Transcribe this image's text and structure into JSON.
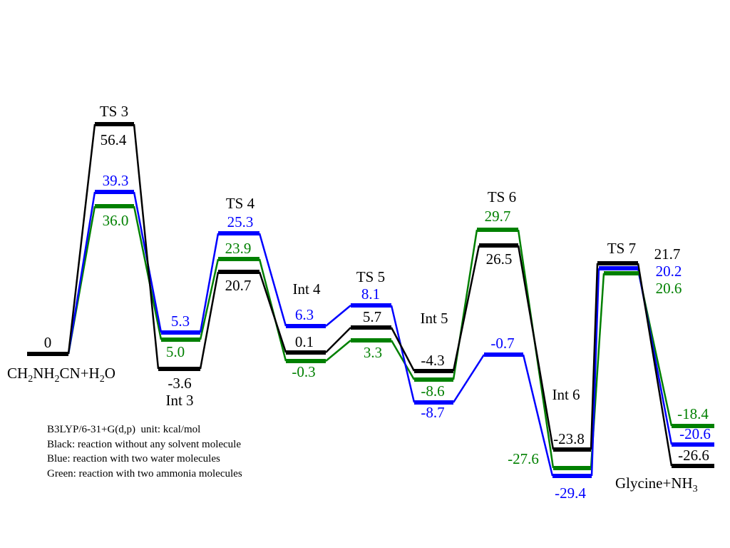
{
  "colors": {
    "black": "#000000",
    "blue": "#0000ff",
    "green": "#008000"
  },
  "levels": [
    {
      "id": "reactant",
      "series": "black",
      "value": "0"
    },
    {
      "id": "ts3",
      "series": "black",
      "value": "56.4"
    },
    {
      "id": "ts3",
      "series": "blue",
      "value": "39.3"
    },
    {
      "id": "ts3",
      "series": "green",
      "value": "36.0"
    },
    {
      "id": "int3",
      "series": "blue",
      "value": "5.3"
    },
    {
      "id": "int3",
      "series": "green",
      "value": "5.0"
    },
    {
      "id": "int3",
      "series": "black",
      "value": "-3.6"
    },
    {
      "id": "ts4",
      "series": "blue",
      "value": "25.3"
    },
    {
      "id": "ts4",
      "series": "green",
      "value": "23.9"
    },
    {
      "id": "ts4",
      "series": "black",
      "value": "20.7"
    },
    {
      "id": "int4",
      "series": "blue",
      "value": "6.3"
    },
    {
      "id": "int4",
      "series": "black",
      "value": "0.1"
    },
    {
      "id": "int4",
      "series": "green",
      "value": "-0.3"
    },
    {
      "id": "ts5",
      "series": "blue",
      "value": "8.1"
    },
    {
      "id": "ts5",
      "series": "black",
      "value": "5.7"
    },
    {
      "id": "ts5",
      "series": "green",
      "value": "3.3"
    },
    {
      "id": "int5",
      "series": "black",
      "value": "-4.3"
    },
    {
      "id": "int5",
      "series": "green",
      "value": "-8.6"
    },
    {
      "id": "int5",
      "series": "blue",
      "value": "-8.7"
    },
    {
      "id": "int5b",
      "series": "blue",
      "value": "-0.7"
    },
    {
      "id": "ts6",
      "series": "green",
      "value": "29.7"
    },
    {
      "id": "ts6",
      "series": "black",
      "value": "26.5"
    },
    {
      "id": "int6",
      "series": "black",
      "value": "-23.8"
    },
    {
      "id": "int6",
      "series": "green",
      "value": "-27.6"
    },
    {
      "id": "int6",
      "series": "blue",
      "value": "-29.4"
    },
    {
      "id": "ts7",
      "series": "black",
      "value": "21.7"
    },
    {
      "id": "ts7",
      "series": "blue",
      "value": "20.2"
    },
    {
      "id": "ts7",
      "series": "green",
      "value": "20.6"
    },
    {
      "id": "product",
      "series": "green",
      "value": "-18.4"
    },
    {
      "id": "product",
      "series": "blue",
      "value": "-20.6"
    },
    {
      "id": "product",
      "series": "black",
      "value": "-26.6"
    }
  ],
  "stage_labels": {
    "ts3": "TS 3",
    "ts4": "TS 4",
    "int4": "Int 4",
    "ts5": "TS 5",
    "int5": "Int 5",
    "ts6": "TS 6",
    "ts7": "TS 7",
    "int3": "Int 3",
    "int6": "Int 6"
  },
  "reactant": {
    "a": "CH",
    "s1": "2",
    "b": "NH",
    "s2": "2",
    "c": "CN+H",
    "s3": "2",
    "d": "O"
  },
  "product": {
    "a": "Glycine+NH",
    "s1": "3"
  },
  "notes": {
    "method": "B3LYP/6-31+G(d,p)  unit: kcal/mol",
    "black": "Black: reaction without any solvent molecule",
    "blue": "Blue: reaction with two water molecules",
    "green": "Green: reaction with two ammonia molecules"
  }
}
